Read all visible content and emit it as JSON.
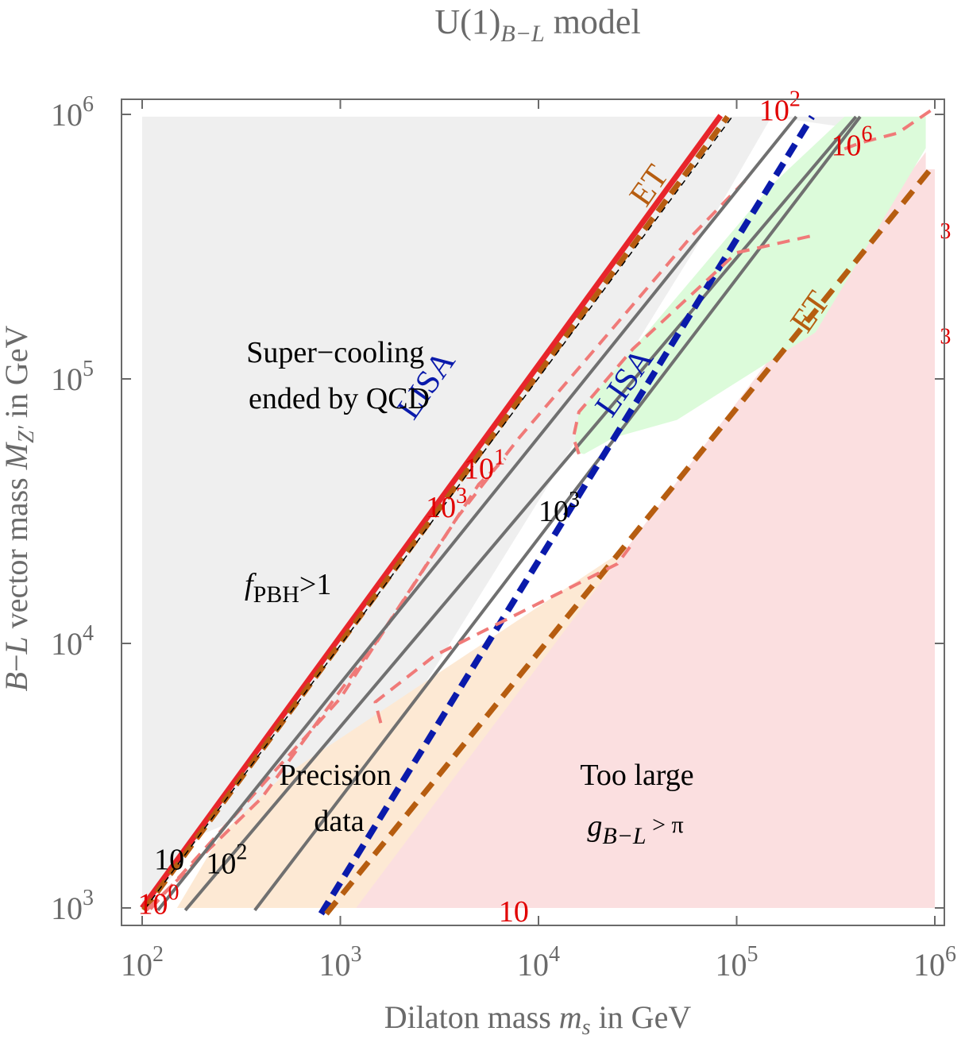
{
  "chart_data": {
    "type": "contour",
    "title": {
      "main": "U(1)",
      "sub": "B−L",
      "suffix": " model"
    },
    "xlabel": {
      "text": "Dilaton mass ",
      "var": "m",
      "sub": "s",
      "unit": " in GeV"
    },
    "ylabel": {
      "prefix": "B",
      "dash": "−",
      "mid": "L",
      "text": " vector mass ",
      "var": "M",
      "sub": "Z′",
      "unit": " in GeV"
    },
    "xscale": "log",
    "yscale": "log",
    "xlim": [
      100,
      1000000
    ],
    "ylim": [
      900,
      1080000
    ],
    "xticks": [
      {
        "value": 100,
        "base": "10",
        "exp": "2"
      },
      {
        "value": 1000,
        "base": "10",
        "exp": "3"
      },
      {
        "value": 10000,
        "base": "10",
        "exp": "4"
      },
      {
        "value": 100000,
        "base": "10",
        "exp": "5"
      },
      {
        "value": 1000000,
        "base": "10",
        "exp": "6"
      }
    ],
    "yticks": [
      {
        "value": 1000,
        "base": "10",
        "exp": "3"
      },
      {
        "value": 10000,
        "base": "10",
        "exp": "4"
      },
      {
        "value": 100000,
        "base": "10",
        "exp": "5"
      },
      {
        "value": 1000000,
        "base": "10",
        "exp": "6"
      }
    ],
    "colors": {
      "supercooling": "#efefef",
      "precision": "#fde9d4",
      "too_large": "#fbdfe0",
      "green": "#dcfbda",
      "gray_line": "#707070",
      "red_dashed": "#f07a78",
      "red_band": "#e8252b",
      "lisa": "#0a1aab",
      "et": "#b65d10",
      "red_label": "#e10000",
      "black": "#000000"
    },
    "regions": [
      {
        "name": "supercooling",
        "color": "#efefef",
        "points": [
          [
            100,
            1000
          ],
          [
            100,
            980000
          ],
          [
            1000000,
            980000
          ],
          [
            1000000,
            800000
          ],
          [
            150000,
            980000
          ],
          [
            60000,
            300000
          ],
          [
            1500,
            3500
          ],
          [
            200,
            1900
          ],
          [
            140,
            1300
          ]
        ]
      },
      {
        "name": "precision",
        "color": "#fde9d4",
        "points": [
          [
            150,
            1000
          ],
          [
            250,
            1900
          ],
          [
            500,
            3100
          ],
          [
            28000,
            23000
          ],
          [
            6500,
            3000
          ],
          [
            1200,
            1000
          ]
        ]
      },
      {
        "name": "too-large",
        "color": "#fbdfe0",
        "points": [
          [
            1200,
            1000
          ],
          [
            28000,
            23000
          ],
          [
            1000000,
            800000
          ],
          [
            1000000,
            1000
          ]
        ]
      },
      {
        "name": "green",
        "color": "#dcfbda",
        "points": [
          [
            15000,
            53000
          ],
          [
            16000,
            75000
          ],
          [
            30000,
            130000
          ],
          [
            150000,
            540000
          ],
          [
            350000,
            980000
          ],
          [
            1000000,
            980000
          ],
          [
            1000000,
            850000
          ],
          [
            250000,
            150000
          ],
          [
            50000,
            70000
          ],
          [
            24000,
            60000
          ],
          [
            17000,
            52000
          ]
        ]
      },
      {
        "name": "white-label-box-1",
        "color": "#ffffff",
        "points": [
          [
            900000,
            980000
          ],
          [
            900000,
            620000
          ],
          [
            1170000,
            620000
          ],
          [
            1170000,
            980000
          ]
        ]
      }
    ],
    "contours": [
      {
        "name": "red-band",
        "color": "#e8252b",
        "width": 7,
        "dash": "",
        "points": [
          [
            100,
            1000
          ],
          [
            83000,
            990000
          ]
        ]
      },
      {
        "name": "red-band-2",
        "color": "#e8252b",
        "width": 4,
        "dash": "",
        "points": [
          [
            101,
            1000
          ],
          [
            83000,
            980000
          ]
        ]
      },
      {
        "name": "brown-thick-1",
        "color": "#b65d10",
        "width": 7,
        "dash": "18,10",
        "points": [
          [
            102,
            980
          ],
          [
            90000,
            980000
          ]
        ]
      },
      {
        "name": "black-thin-1",
        "color": "#000000",
        "width": 1.5,
        "dash": "8,6",
        "points": [
          [
            103,
            990
          ],
          [
            95000,
            980000
          ]
        ]
      },
      {
        "name": "red-dashed-1",
        "color": "#f07a78",
        "width": 4,
        "dash": "16,10",
        "points": [
          [
            110,
            990
          ],
          [
            1000,
            6200
          ],
          [
            3900,
            30000
          ],
          [
            8000,
            60000
          ],
          [
            60000,
            350000
          ],
          [
            110000,
            560000
          ]
        ]
      },
      {
        "name": "red-dashed-2",
        "color": "#f07a78",
        "width": 4,
        "dash": "16,10",
        "points": [
          [
            105,
            980
          ],
          [
            400,
            2600
          ],
          [
            1500,
            10000
          ],
          [
            5000,
            40000
          ],
          [
            6800,
            50000
          ]
        ]
      },
      {
        "name": "gray-10",
        "color": "#707070",
        "width": 4,
        "dash": "",
        "points": [
          [
            120,
            980
          ],
          [
            200000,
            980000
          ]
        ]
      },
      {
        "name": "gray-100",
        "color": "#707070",
        "width": 4,
        "dash": "",
        "points": [
          [
            165,
            980
          ],
          [
            400000,
            980000
          ]
        ]
      },
      {
        "name": "gray-1000",
        "color": "#707070",
        "width": 4,
        "dash": "",
        "points": [
          [
            370,
            980
          ],
          [
            420000,
            980000
          ]
        ]
      },
      {
        "name": "lisa-blue",
        "color": "#0a1aab",
        "width": 8,
        "dash": "18,10",
        "points": [
          [
            800,
            950
          ],
          [
            240000,
            980000
          ]
        ]
      },
      {
        "name": "et-brown",
        "color": "#b65d10",
        "width": 7,
        "dash": "20,12",
        "points": [
          [
            850,
            950
          ],
          [
            1000000,
            650000
          ]
        ]
      },
      {
        "name": "red-dashed-mid",
        "color": "#f07a78",
        "width": 4,
        "dash": "16,10",
        "points": [
          [
            1600,
            5000
          ],
          [
            1500,
            6000
          ],
          [
            3000,
            9000
          ],
          [
            25000,
            20000
          ],
          [
            30000,
            24000
          ]
        ]
      },
      {
        "name": "red-dashed-green-lower",
        "color": "#f07a78",
        "width": 4,
        "dash": "16,10",
        "points": [
          [
            16000,
            52000
          ],
          [
            15000,
            60000
          ],
          [
            16000,
            75000
          ],
          [
            30000,
            130000
          ],
          [
            100000,
            300000
          ],
          [
            250000,
            350000
          ]
        ]
      },
      {
        "name": "red-dashed-top",
        "color": "#f07a78",
        "width": 4,
        "dash": "16,10",
        "points": [
          [
            350000,
            740000
          ],
          [
            420000,
            780000
          ],
          [
            650000,
            850000
          ],
          [
            1000000,
            1060000
          ]
        ]
      }
    ],
    "region_labels": [
      {
        "name": "supercooling-label",
        "lines": [
          "Super−cooling",
          "ended by QCD"
        ]
      },
      {
        "name": "precision-label",
        "lines": [
          "Precision",
          "data"
        ]
      },
      {
        "name": "too-large-label",
        "lines": [
          "Too large"
        ]
      }
    ],
    "too_large_coupling": {
      "var": "g",
      "sub": "B−L",
      "rest": " > π"
    },
    "fpbh_label": {
      "var": "f",
      "sub": "PBH",
      "rest": ">1"
    },
    "line_labels": [
      {
        "name": "lisa-label-1",
        "text": "LISA",
        "color": "#0a1aab",
        "x": 3000,
        "y": 90000,
        "angle": -55
      },
      {
        "name": "lisa-label-2",
        "text": "LISA",
        "color": "#0a1aab",
        "x": 30000,
        "y": 92000,
        "angle": -55
      },
      {
        "name": "et-label-1",
        "text": "ET",
        "color": "#b65d10",
        "x": 40000,
        "y": 510000,
        "angle": -55
      },
      {
        "name": "et-label-2",
        "text": "ET",
        "color": "#b65d10",
        "x": 260000,
        "y": 170000,
        "angle": -55
      }
    ],
    "contour_labels": [
      {
        "name": "gray-label-10",
        "base": "10",
        "exp": "",
        "color": "#000000",
        "x": 115,
        "y": 1400
      },
      {
        "name": "gray-label-100",
        "base": "10",
        "exp": "2",
        "color": "#000000",
        "x": 210,
        "y": 1350
      },
      {
        "name": "gray-label-1000",
        "base": "10",
        "exp": "3",
        "color": "#000000",
        "x": 10000,
        "y": 29000
      },
      {
        "name": "red-label-10-0",
        "base": "10",
        "exp": "0",
        "color": "#e10000",
        "x": 95,
        "y": 950
      },
      {
        "name": "red-label-10-1",
        "base": "10",
        "exp": "1",
        "color": "#e10000",
        "x": 4200,
        "y": 42000
      },
      {
        "name": "red-label-10-2",
        "base": "10",
        "exp": "2",
        "color": "#e10000",
        "x": 130000,
        "y": 950000
      },
      {
        "name": "red-label-10-3",
        "base": "10",
        "exp": "3",
        "color": "#e10000",
        "x": 2700,
        "y": 30000
      },
      {
        "name": "red-label-10-6",
        "base": "10",
        "exp": "6",
        "color": "#e10000",
        "x": 300000,
        "y": 700000
      },
      {
        "name": "red-label-bottom",
        "base": "10",
        "exp": "",
        "color": "#e10000",
        "x": 6300,
        "y": 890
      },
      {
        "name": "red-label-right-1",
        "base": "",
        "exp": "3",
        "color": "#e10000",
        "x": 1060000,
        "y": 300000
      },
      {
        "name": "red-label-right-2",
        "base": "",
        "exp": "3",
        "color": "#e10000",
        "x": 1060000,
        "y": 120000
      }
    ]
  }
}
